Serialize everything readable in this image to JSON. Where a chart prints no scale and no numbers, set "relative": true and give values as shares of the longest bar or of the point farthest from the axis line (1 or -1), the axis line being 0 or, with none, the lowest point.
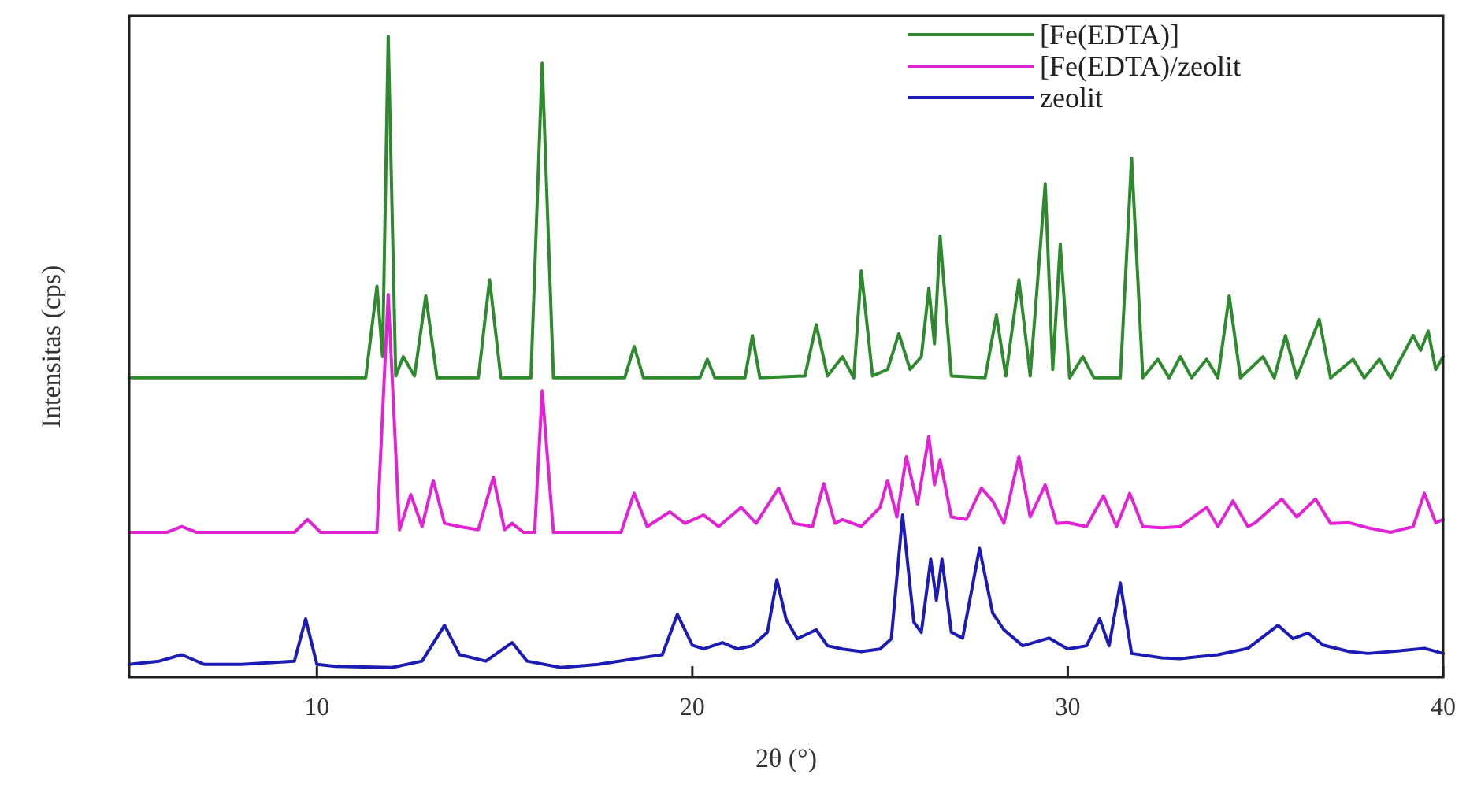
{
  "chart_data": {
    "type": "line",
    "xlabel": "2θ (°)",
    "ylabel": "Intensitas (cps)",
    "relative": true,
    "xlim": [
      5,
      40
    ],
    "xticks": [
      10,
      20,
      30,
      40
    ],
    "legend": "top right",
    "grid": false,
    "marker": "none",
    "line_style": "solid",
    "series": [
      {
        "name": "[Fe(EDTA)]",
        "color": "#2f8a2f",
        "x": [
          5,
          11.3,
          11.6,
          11.75,
          11.9,
          12.1,
          12.3,
          12.6,
          12.9,
          13.2,
          14.3,
          14.6,
          14.9,
          15.7,
          16.0,
          16.3,
          18.2,
          18.45,
          18.7,
          20.2,
          20.4,
          20.6,
          21.4,
          21.6,
          21.8,
          23.0,
          23.3,
          23.6,
          24.0,
          24.3,
          24.5,
          24.8,
          25.2,
          25.5,
          25.8,
          26.1,
          26.3,
          26.45,
          26.6,
          26.9,
          27.8,
          28.1,
          28.35,
          28.7,
          29.0,
          29.4,
          29.6,
          29.8,
          30.05,
          30.4,
          30.7,
          31.4,
          31.7,
          32.0,
          32.4,
          32.7,
          33.0,
          33.3,
          33.7,
          34.0,
          34.3,
          34.6,
          35.2,
          35.5,
          35.8,
          36.1,
          36.7,
          37.0,
          37.6,
          37.9,
          38.3,
          38.6,
          39.2,
          39.4,
          39.6,
          39.8,
          40
        ],
        "values": [
          0.467,
          0.467,
          0.61,
          0.5,
          1.0,
          0.47,
          0.5,
          0.47,
          0.595,
          0.467,
          0.467,
          0.62,
          0.467,
          0.467,
          0.958,
          0.467,
          0.467,
          0.516,
          0.467,
          0.467,
          0.496,
          0.467,
          0.467,
          0.533,
          0.467,
          0.47,
          0.55,
          0.47,
          0.5,
          0.467,
          0.634,
          0.47,
          0.48,
          0.536,
          0.48,
          0.5,
          0.607,
          0.52,
          0.688,
          0.47,
          0.467,
          0.565,
          0.47,
          0.62,
          0.47,
          0.77,
          0.48,
          0.676,
          0.467,
          0.5,
          0.467,
          0.467,
          0.81,
          0.467,
          0.496,
          0.467,
          0.5,
          0.467,
          0.496,
          0.467,
          0.595,
          0.467,
          0.5,
          0.467,
          0.533,
          0.467,
          0.558,
          0.467,
          0.496,
          0.467,
          0.496,
          0.467,
          0.533,
          0.51,
          0.54,
          0.48,
          0.5
        ]
      },
      {
        "name": "[Fe(EDTA)/zeolit",
        "color": "#e024d4",
        "x": [
          5,
          6.0,
          6.4,
          6.8,
          9.4,
          9.75,
          10.1,
          11.6,
          11.9,
          12.2,
          12.5,
          12.8,
          13.1,
          13.4,
          13.8,
          14.3,
          14.7,
          15.0,
          15.2,
          15.5,
          15.8,
          16.0,
          16.3,
          18.1,
          18.45,
          18.8,
          19.4,
          19.8,
          20.3,
          20.7,
          21.3,
          21.7,
          22.3,
          22.7,
          23.2,
          23.5,
          23.8,
          24.0,
          24.5,
          25.0,
          25.2,
          25.45,
          25.7,
          26.0,
          26.3,
          26.45,
          26.6,
          26.9,
          27.3,
          27.7,
          28.0,
          28.3,
          28.7,
          29.0,
          29.4,
          29.7,
          30.0,
          30.5,
          30.95,
          31.3,
          31.65,
          32.0,
          32.5,
          33.0,
          33.7,
          34.0,
          34.4,
          34.8,
          35.0,
          35.7,
          36.1,
          36.6,
          37.0,
          37.5,
          38.0,
          38.6,
          39.2,
          39.5,
          39.8,
          40
        ],
        "values": [
          0.226,
          0.226,
          0.235,
          0.226,
          0.226,
          0.246,
          0.226,
          0.226,
          0.597,
          0.23,
          0.285,
          0.235,
          0.307,
          0.24,
          0.235,
          0.23,
          0.312,
          0.23,
          0.24,
          0.226,
          0.226,
          0.447,
          0.226,
          0.226,
          0.287,
          0.235,
          0.258,
          0.24,
          0.253,
          0.235,
          0.265,
          0.24,
          0.295,
          0.24,
          0.235,
          0.302,
          0.24,
          0.246,
          0.235,
          0.265,
          0.307,
          0.25,
          0.344,
          0.27,
          0.376,
          0.3,
          0.339,
          0.25,
          0.246,
          0.295,
          0.275,
          0.24,
          0.344,
          0.25,
          0.3,
          0.24,
          0.241,
          0.235,
          0.283,
          0.235,
          0.287,
          0.235,
          0.233,
          0.235,
          0.265,
          0.235,
          0.275,
          0.235,
          0.241,
          0.278,
          0.25,
          0.278,
          0.24,
          0.241,
          0.233,
          0.226,
          0.235,
          0.287,
          0.241,
          0.246
        ]
      },
      {
        "name": "zeolit",
        "color": "#1c1cb4",
        "x": [
          5,
          5.8,
          6.4,
          7.0,
          8.0,
          9.4,
          9.7,
          10.0,
          10.5,
          12.0,
          12.8,
          13.4,
          13.8,
          14.5,
          15.2,
          15.6,
          16.5,
          17.5,
          18.5,
          19.2,
          19.6,
          20.0,
          20.3,
          20.8,
          21.2,
          21.6,
          22.0,
          22.25,
          22.5,
          22.8,
          23.3,
          23.6,
          24.0,
          24.5,
          25.0,
          25.3,
          25.6,
          25.9,
          26.1,
          26.35,
          26.5,
          26.65,
          26.9,
          27.2,
          27.65,
          28.0,
          28.3,
          28.8,
          29.5,
          30.0,
          30.5,
          30.85,
          31.1,
          31.4,
          31.7,
          32.5,
          33.0,
          34.0,
          34.8,
          35.6,
          36.0,
          36.4,
          36.8,
          37.5,
          38.0,
          39.0,
          39.5,
          40
        ],
        "values": [
          0.02,
          0.025,
          0.035,
          0.02,
          0.02,
          0.025,
          0.091,
          0.02,
          0.017,
          0.015,
          0.025,
          0.081,
          0.035,
          0.025,
          0.054,
          0.025,
          0.015,
          0.02,
          0.029,
          0.035,
          0.098,
          0.05,
          0.044,
          0.054,
          0.044,
          0.049,
          0.07,
          0.152,
          0.09,
          0.06,
          0.074,
          0.049,
          0.044,
          0.04,
          0.044,
          0.06,
          0.253,
          0.086,
          0.07,
          0.184,
          0.12,
          0.184,
          0.07,
          0.061,
          0.201,
          0.1,
          0.074,
          0.049,
          0.061,
          0.044,
          0.049,
          0.091,
          0.049,
          0.147,
          0.037,
          0.03,
          0.029,
          0.035,
          0.045,
          0.081,
          0.06,
          0.069,
          0.05,
          0.04,
          0.037,
          0.042,
          0.045,
          0.037
        ]
      }
    ]
  }
}
